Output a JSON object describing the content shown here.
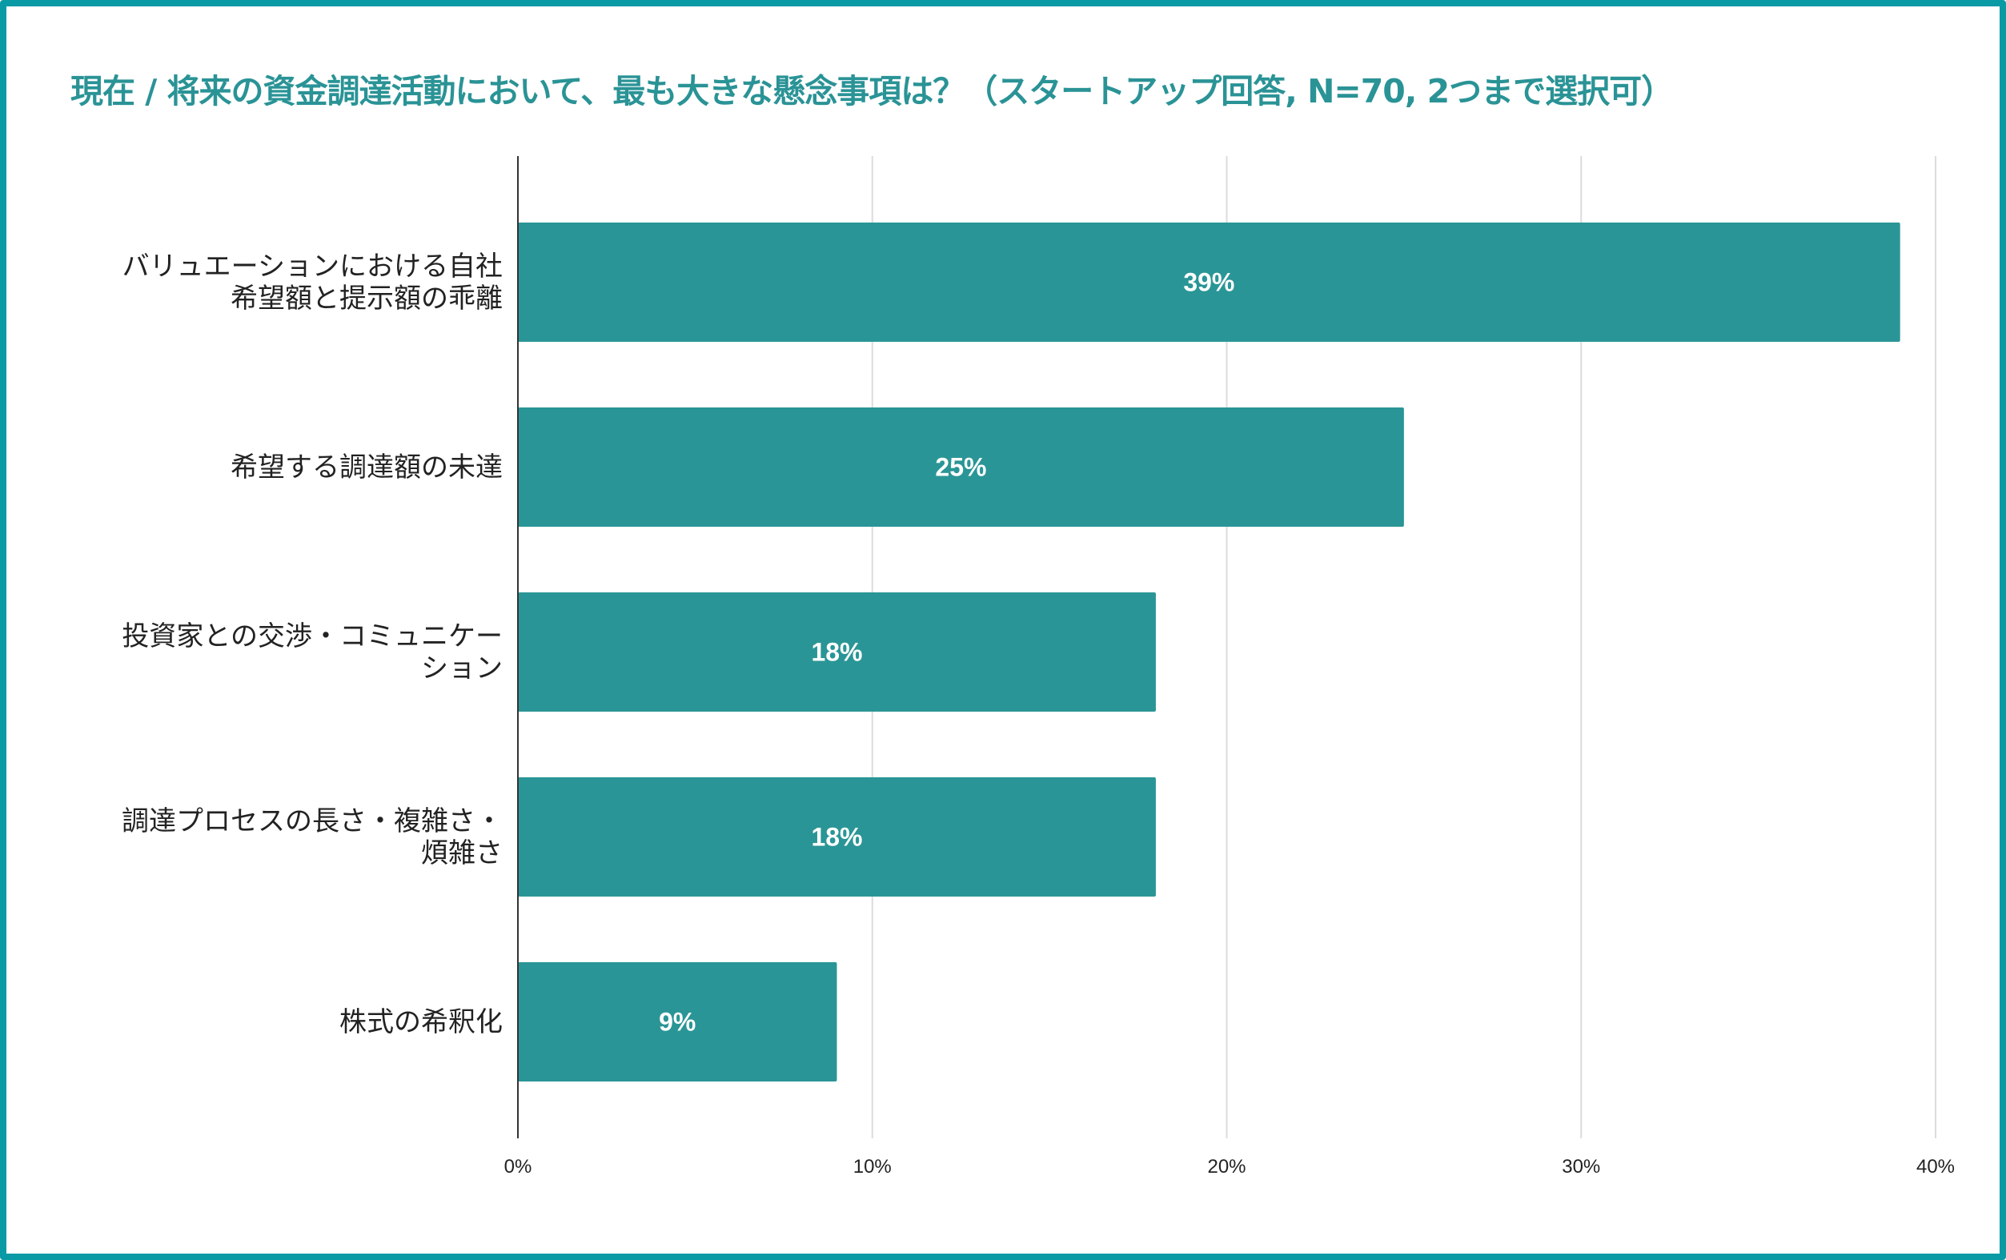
{
  "chart_data": {
    "type": "bar",
    "orientation": "horizontal",
    "title": "現在 / 将来の資金調達活動において、最も大きな懸念事項は？（スタートアップ回答, N=70, 2つまで選択可）",
    "categories": [
      "バリュエーションにおける自社\n希望額と提示額の乖離",
      "希望する調達額の未達",
      "投資家との交渉・コミュニケー\nション",
      "調達プロセスの長さ・複雑さ・\n煩雑さ",
      "株式の希釈化"
    ],
    "values": [
      39,
      25,
      18,
      18,
      9
    ],
    "data_labels": [
      "39%",
      "25%",
      "18%",
      "18%",
      "9%"
    ],
    "xlim": [
      0,
      40
    ],
    "xticks": [
      0,
      10,
      20,
      30,
      40
    ],
    "xtick_labels": [
      "0%",
      "10%",
      "20%",
      "30%",
      "40%"
    ],
    "grid": true,
    "legend": "none",
    "colors": {
      "bar": "#2a9596",
      "title": "#2a9396",
      "border": "#0a9aa6"
    }
  }
}
